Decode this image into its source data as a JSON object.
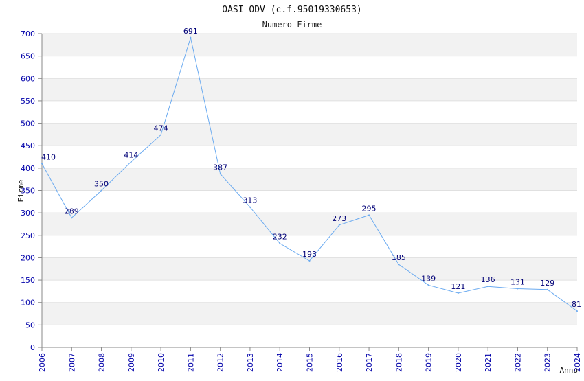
{
  "chart_data": {
    "type": "line",
    "title": "OASI ODV (c.f.95019330653)",
    "subtitle": "Numero Firme",
    "xlabel": "Anno",
    "ylabel": "Firme",
    "x": [
      "2006",
      "2007",
      "2008",
      "2009",
      "2010",
      "2011",
      "2012",
      "2013",
      "2014",
      "2015",
      "2016",
      "2017",
      "2018",
      "2019",
      "2020",
      "2021",
      "2022",
      "2023",
      "2024"
    ],
    "series": [
      {
        "values": [
          410,
          289,
          350,
          414,
          474,
          691,
          387,
          313,
          232,
          193,
          273,
          295,
          185,
          139,
          121,
          136,
          131,
          129,
          81
        ]
      }
    ],
    "yticks": [
      "0",
      "50",
      "100",
      "150",
      "200",
      "250",
      "300",
      "350",
      "400",
      "450",
      "500",
      "550",
      "600",
      "650",
      "700"
    ],
    "ylim": [
      0,
      700
    ],
    "grid": true,
    "band_colors": [
      "#f2f2f2",
      "#ffffff"
    ],
    "line_color": "#6aaaf0",
    "tick_color": "#0000aa",
    "label_color": "#000077"
  }
}
